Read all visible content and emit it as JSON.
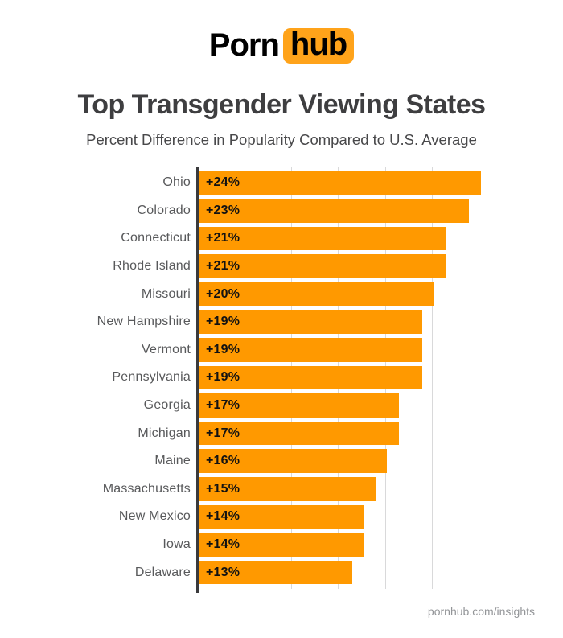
{
  "logo": {
    "part1": "Porn",
    "part2": "hub",
    "box_color": "#ffa31a"
  },
  "header": {
    "title": "Top Transgender Viewing States",
    "subtitle": "Percent Difference in Popularity Compared to U.S. Average"
  },
  "chart_data": {
    "type": "bar",
    "orientation": "horizontal",
    "title": "Top Transgender Viewing States",
    "subtitle": "Percent Difference in Popularity Compared to U.S. Average",
    "categories": [
      "Ohio",
      "Colorado",
      "Connecticut",
      "Rhode Island",
      "Missouri",
      "New Hampshire",
      "Vermont",
      "Pennsylvania",
      "Georgia",
      "Michigan",
      "Maine",
      "Massachusetts",
      "New Mexico",
      "Iowa",
      "Delaware"
    ],
    "values": [
      24,
      23,
      21,
      21,
      20,
      19,
      19,
      19,
      17,
      17,
      16,
      15,
      14,
      14,
      13
    ],
    "value_labels": [
      "+24%",
      "+23%",
      "+21%",
      "+21%",
      "+20%",
      "+19%",
      "+19%",
      "+19%",
      "+17%",
      "+17%",
      "+16%",
      "+15%",
      "+14%",
      "+14%",
      "+13%"
    ],
    "xlabel": "",
    "ylabel": "",
    "xlim": [
      0,
      24
    ],
    "gridline_interval": 4,
    "grid": true,
    "legend": false,
    "bar_color": "#ff9900",
    "axis_color": "#3a3a3c",
    "gridline_color": "#d9d9da"
  },
  "footer": {
    "text": "pornhub.com/insights"
  }
}
